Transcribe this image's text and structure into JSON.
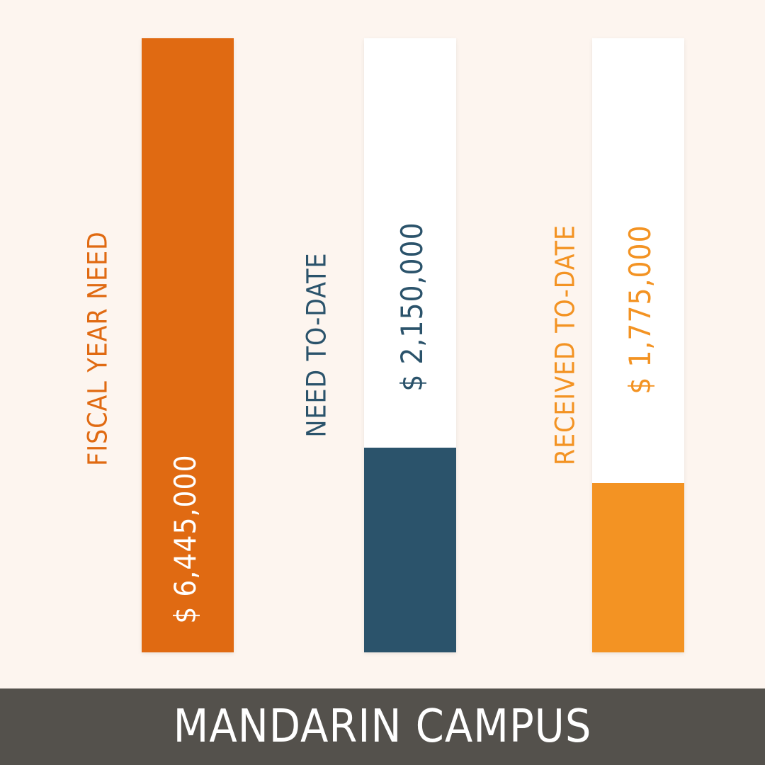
{
  "colors": {
    "background": "#fdf5ef",
    "track": "#ffffff",
    "footer_bg": "#54514c",
    "footer_text": "#ffffff",
    "value_on_bar": "#ffffff"
  },
  "chart_data": {
    "type": "bar",
    "orientation": "vertical",
    "categories": [
      "FISCAL YEAR NEED",
      "NEED TO-DATE",
      "RECEIVED TO-DATE"
    ],
    "values": [
      6445000,
      2150000,
      1775000
    ],
    "value_labels": [
      "$ 6,445,000",
      "$ 2,150,000",
      "$ 1,775,000"
    ],
    "bar_colors": [
      "#e06a12",
      "#2b536b",
      "#f39323"
    ],
    "label_colors": [
      "#e06a12",
      "#2b536b",
      "#f39323"
    ],
    "ylim": [
      0,
      6445000
    ],
    "grid": false,
    "legend": "none",
    "title": "MANDARIN CAMPUS"
  },
  "footer": {
    "title": "MANDARIN CAMPUS"
  }
}
